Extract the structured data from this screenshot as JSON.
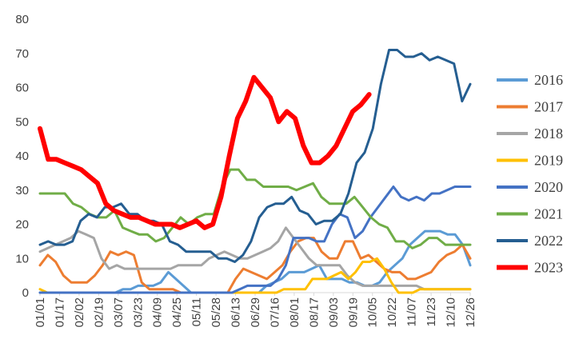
{
  "chart_data": {
    "type": "line",
    "title": "",
    "xlabel": "",
    "ylabel": "",
    "ylim": [
      0,
      80
    ],
    "yticks": [
      0,
      10,
      20,
      30,
      40,
      50,
      60,
      70,
      80
    ],
    "x_tick_labels": [
      "01/01",
      "01/17",
      "02/02",
      "02/19",
      "03/07",
      "03/23",
      "04/09",
      "04/25",
      "05/11",
      "05/28",
      "06/13",
      "06/29",
      "07/16",
      "08/01",
      "08/17",
      "09/03",
      "09/19",
      "10/05",
      "10/22",
      "11/07",
      "11/23",
      "12/10",
      "12/26"
    ],
    "grid": false,
    "legend_position": "right",
    "series": [
      {
        "name": "2016",
        "color": "#5b9bd5",
        "width": 3,
        "values": [
          0,
          0,
          0,
          0,
          0,
          0,
          0,
          0,
          0,
          0,
          0,
          1,
          1,
          2,
          2,
          2,
          3,
          6,
          4,
          2,
          0,
          0,
          0,
          0,
          0,
          0,
          0,
          0,
          0,
          0,
          2,
          3,
          4,
          6,
          6,
          6,
          7,
          8,
          4,
          4,
          4,
          3,
          3,
          2,
          2,
          3,
          6,
          8,
          10,
          14,
          16,
          18,
          18,
          18,
          17,
          17,
          14,
          8
        ]
      },
      {
        "name": "2017",
        "color": "#ed7d31",
        "width": 3,
        "values": [
          8,
          11,
          9,
          5,
          3,
          3,
          3,
          5,
          8,
          12,
          11,
          12,
          11,
          3,
          1,
          1,
          1,
          1,
          0,
          0,
          0,
          0,
          0,
          0,
          0,
          4,
          7,
          6,
          5,
          4,
          6,
          8,
          12,
          15,
          16,
          16,
          12,
          10,
          10,
          15,
          15,
          10,
          11,
          9,
          7,
          6,
          6,
          4,
          4,
          5,
          6,
          9,
          11,
          12,
          14,
          10
        ]
      },
      {
        "name": "2018",
        "color": "#a5a5a5",
        "width": 3,
        "values": [
          12,
          13,
          14,
          15,
          16,
          18,
          17,
          16,
          10,
          7,
          8,
          7,
          7,
          7,
          7,
          7,
          7,
          7,
          8,
          8,
          8,
          8,
          10,
          11,
          12,
          11,
          10,
          10,
          11,
          12,
          13,
          15,
          19,
          16,
          13,
          10,
          8,
          8,
          8,
          8,
          5,
          3,
          2,
          2,
          2,
          2,
          2,
          2,
          2,
          2,
          1,
          1,
          1,
          1,
          1,
          1,
          1
        ]
      },
      {
        "name": "2019",
        "color": "#ffc000",
        "width": 3,
        "values": [
          1,
          0,
          0,
          0,
          0,
          0,
          0,
          0,
          0,
          0,
          0,
          0,
          0,
          0,
          0,
          0,
          0,
          0,
          0,
          0,
          0,
          0,
          0,
          0,
          0,
          0,
          0,
          0,
          0,
          0,
          0,
          0,
          0,
          0,
          1,
          1,
          1,
          1,
          4,
          4,
          4,
          5,
          6,
          4,
          6,
          9,
          9,
          10,
          7,
          3,
          0,
          0,
          0,
          1,
          1,
          1,
          1,
          1,
          1,
          1,
          1
        ]
      },
      {
        "name": "2020",
        "color": "#4472c4",
        "width": 3,
        "values": [
          0,
          0,
          0,
          0,
          0,
          0,
          0,
          0,
          0,
          0,
          0,
          0,
          0,
          0,
          0,
          0,
          0,
          0,
          0,
          0,
          0,
          0,
          0,
          0,
          0,
          0,
          1,
          2,
          2,
          2,
          2,
          4,
          8,
          16,
          16,
          16,
          15,
          15,
          20,
          23,
          22,
          16,
          18,
          22,
          25,
          28,
          31,
          28,
          27,
          28,
          27,
          29,
          29,
          30,
          31,
          31,
          31
        ]
      },
      {
        "name": "2021",
        "color": "#70ad47",
        "width": 3,
        "values": [
          29,
          29,
          29,
          29,
          26,
          25,
          23,
          22,
          22,
          24,
          19,
          18,
          17,
          17,
          15,
          16,
          19,
          22,
          20,
          22,
          23,
          23,
          31,
          36,
          36,
          33,
          33,
          31,
          31,
          31,
          31,
          30,
          31,
          32,
          28,
          26,
          26,
          26,
          28,
          25,
          22,
          20,
          19,
          15,
          15,
          13,
          14,
          16,
          16,
          14,
          14,
          14,
          14
        ]
      },
      {
        "name": "2022",
        "color": "#255e91",
        "width": 3,
        "values": [
          14,
          15,
          14,
          14,
          15,
          21,
          23,
          22,
          25,
          25,
          26,
          23,
          23,
          21,
          21,
          20,
          15,
          14,
          12,
          12,
          12,
          12,
          10,
          10,
          9,
          11,
          15,
          22,
          25,
          26,
          26,
          28,
          24,
          23,
          20,
          21,
          21,
          23,
          29,
          38,
          41,
          48,
          61,
          71,
          71,
          69,
          69,
          70,
          68,
          69,
          68,
          67,
          56,
          61
        ]
      },
      {
        "name": "2023",
        "color": "#ff0000",
        "width": 6,
        "values": [
          48,
          39,
          39,
          38,
          37,
          36,
          34,
          32,
          26,
          24,
          23,
          22,
          22,
          21,
          20,
          20,
          20,
          19,
          20,
          21,
          19,
          20,
          28,
          40,
          51,
          56,
          63,
          60,
          57,
          50,
          53,
          51,
          43,
          38,
          38,
          40,
          43,
          48,
          53,
          55,
          58
        ]
      }
    ]
  }
}
